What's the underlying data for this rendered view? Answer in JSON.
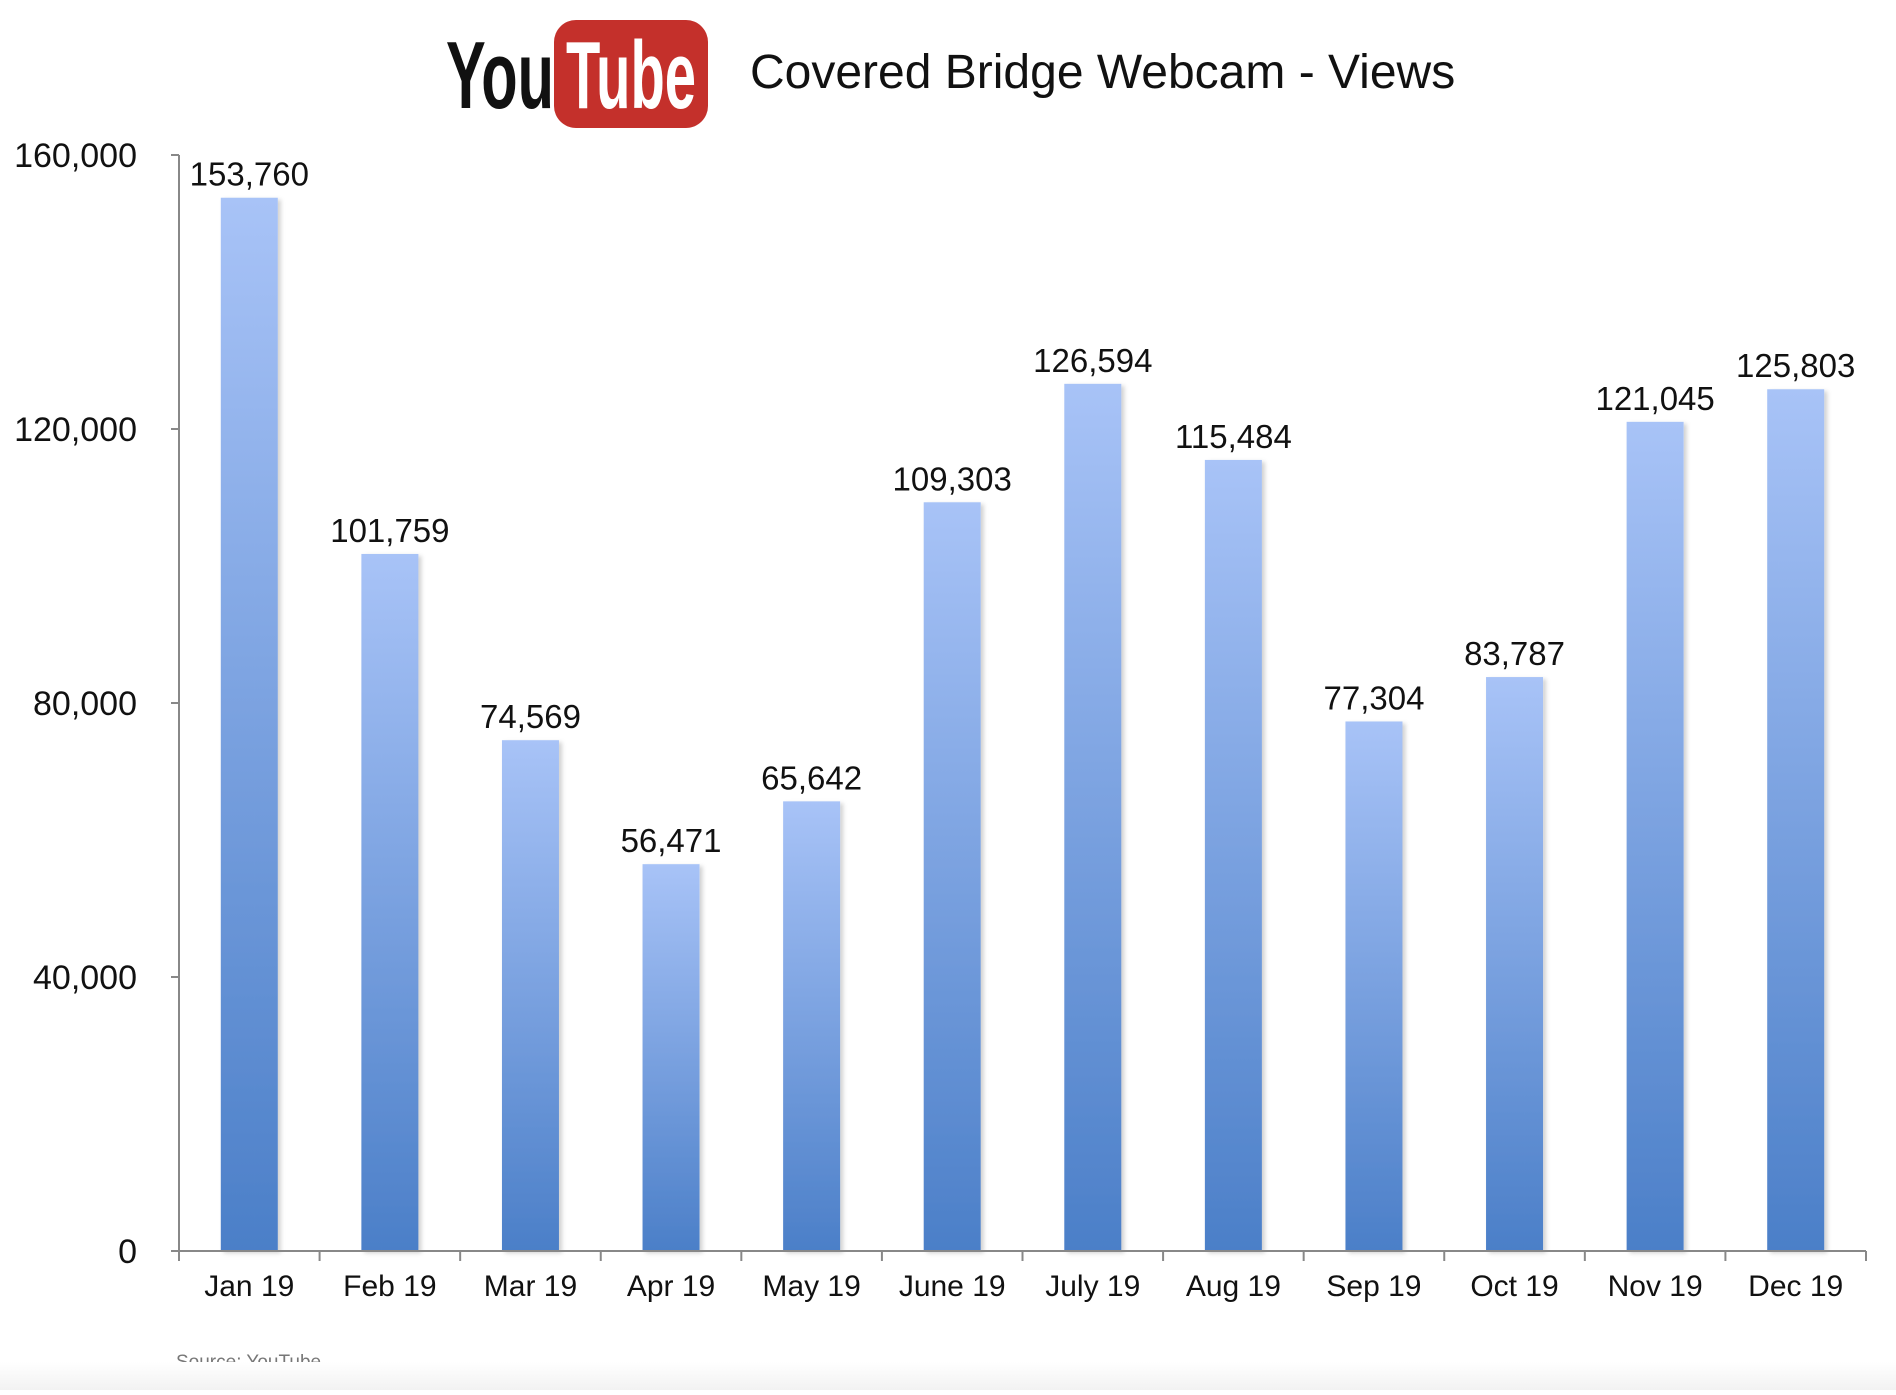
{
  "logo": {
    "word_you": "You",
    "word_tube": "Tube",
    "red": "#c4302b",
    "text_color": "#111111"
  },
  "title": "Covered Bridge Webcam - Views",
  "source": "Source: YouTube",
  "colors": {
    "bar_top": "#a8c3f7",
    "bar_bottom": "#4b7fc8",
    "axis": "#888888",
    "text": "#111111",
    "source_text": "#777777"
  },
  "chart_data": {
    "type": "bar",
    "title": "Covered Bridge Webcam - Views",
    "xlabel": "",
    "ylabel": "",
    "categories": [
      "Jan 19",
      "Feb 19",
      "Mar 19",
      "Apr 19",
      "May 19",
      "June 19",
      "July 19",
      "Aug 19",
      "Sep 19",
      "Oct 19",
      "Nov 19",
      "Dec 19"
    ],
    "values": [
      153760,
      101759,
      74569,
      56471,
      65642,
      109303,
      126594,
      115484,
      77304,
      83787,
      121045,
      125803
    ],
    "value_labels": [
      "153,760",
      "101,759",
      "74,569",
      "56,471",
      "65,642",
      "109,303",
      "126,594",
      "115,484",
      "77,304",
      "83,787",
      "121,045",
      "125,803"
    ],
    "ylim": [
      0,
      160000
    ],
    "yticks": [
      0,
      40000,
      80000,
      120000,
      160000
    ],
    "ytick_labels": [
      "0",
      "40,000",
      "80,000",
      "120,000",
      "160,000"
    ],
    "grid": false,
    "legend": "none"
  }
}
